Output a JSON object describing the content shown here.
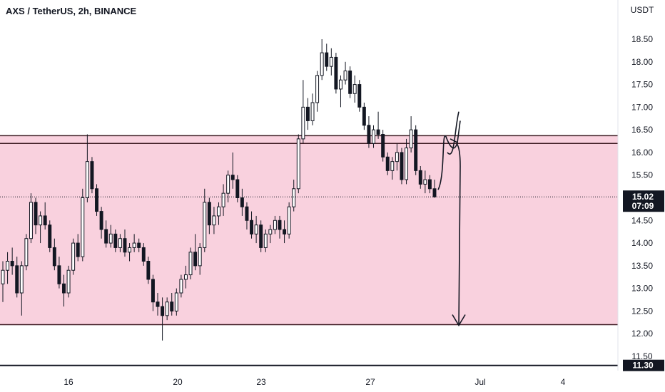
{
  "chart_data": {
    "type": "candlestick",
    "title": "AXS / TetherUS, 2h, BINANCE",
    "currency": "USDT",
    "y_ticks": [
      11.5,
      12.0,
      12.5,
      13.0,
      13.5,
      14.0,
      14.5,
      15.0,
      15.5,
      16.0,
      16.5,
      17.0,
      17.5,
      18.0,
      18.5
    ],
    "ylim": [
      11.2,
      18.9
    ],
    "x_ticks": [
      "16",
      "20",
      "23",
      "27",
      "Jul",
      "4"
    ],
    "last_price": "15.02",
    "countdown": "07:09",
    "low_marker": "11.30",
    "zone": {
      "top": 16.37,
      "bottom": 12.2,
      "color": "#f9d1de"
    },
    "resistance_lines": [
      16.37,
      16.2
    ],
    "support_line": 12.2,
    "bottom_line": 11.3,
    "colors": {
      "candle": "#131722",
      "zone_line": "#3d1a22",
      "annotation": "#131722",
      "price_tag": "#131722"
    },
    "candles": [
      {
        "o": 13.1,
        "h": 13.6,
        "l": 12.7,
        "c": 13.4
      },
      {
        "o": 13.4,
        "h": 13.8,
        "l": 13.1,
        "c": 13.6
      },
      {
        "o": 13.6,
        "h": 13.9,
        "l": 13.3,
        "c": 13.5
      },
      {
        "o": 13.5,
        "h": 13.7,
        "l": 12.8,
        "c": 12.9
      },
      {
        "o": 12.9,
        "h": 13.6,
        "l": 12.4,
        "c": 13.5
      },
      {
        "o": 13.5,
        "h": 14.2,
        "l": 13.4,
        "c": 14.1
      },
      {
        "o": 14.1,
        "h": 15.1,
        "l": 14.0,
        "c": 14.9
      },
      {
        "o": 14.9,
        "h": 15.0,
        "l": 14.2,
        "c": 14.4
      },
      {
        "o": 14.4,
        "h": 14.7,
        "l": 14.0,
        "c": 14.6
      },
      {
        "o": 14.6,
        "h": 14.9,
        "l": 14.3,
        "c": 14.4
      },
      {
        "o": 14.4,
        "h": 14.5,
        "l": 13.8,
        "c": 13.9
      },
      {
        "o": 13.9,
        "h": 14.1,
        "l": 13.4,
        "c": 13.5
      },
      {
        "o": 13.5,
        "h": 13.7,
        "l": 13.0,
        "c": 13.1
      },
      {
        "o": 13.1,
        "h": 13.3,
        "l": 12.6,
        "c": 12.9
      },
      {
        "o": 12.9,
        "h": 13.5,
        "l": 12.8,
        "c": 13.4
      },
      {
        "o": 13.4,
        "h": 14.1,
        "l": 13.3,
        "c": 14.0
      },
      {
        "o": 14.0,
        "h": 14.2,
        "l": 13.6,
        "c": 13.7
      },
      {
        "o": 13.7,
        "h": 15.2,
        "l": 13.6,
        "c": 15.0
      },
      {
        "o": 15.0,
        "h": 16.4,
        "l": 14.9,
        "c": 15.8
      },
      {
        "o": 15.8,
        "h": 15.9,
        "l": 15.1,
        "c": 15.2
      },
      {
        "o": 15.2,
        "h": 15.3,
        "l": 14.6,
        "c": 14.7
      },
      {
        "o": 14.7,
        "h": 14.8,
        "l": 14.1,
        "c": 14.3
      },
      {
        "o": 14.3,
        "h": 14.5,
        "l": 13.9,
        "c": 14.0
      },
      {
        "o": 14.0,
        "h": 14.4,
        "l": 13.9,
        "c": 14.2
      },
      {
        "o": 14.2,
        "h": 14.3,
        "l": 13.8,
        "c": 13.9
      },
      {
        "o": 13.9,
        "h": 14.2,
        "l": 13.8,
        "c": 14.1
      },
      {
        "o": 14.1,
        "h": 14.3,
        "l": 13.7,
        "c": 13.8
      },
      {
        "o": 13.8,
        "h": 14.0,
        "l": 13.6,
        "c": 13.9
      },
      {
        "o": 13.9,
        "h": 14.2,
        "l": 13.8,
        "c": 14.0
      },
      {
        "o": 14.0,
        "h": 14.1,
        "l": 13.8,
        "c": 13.9
      },
      {
        "o": 13.9,
        "h": 14.0,
        "l": 13.5,
        "c": 13.6
      },
      {
        "o": 13.6,
        "h": 13.7,
        "l": 13.1,
        "c": 13.2
      },
      {
        "o": 13.2,
        "h": 13.3,
        "l": 12.5,
        "c": 12.7
      },
      {
        "o": 12.7,
        "h": 12.9,
        "l": 12.4,
        "c": 12.6
      },
      {
        "o": 12.6,
        "h": 12.8,
        "l": 11.85,
        "c": 12.4
      },
      {
        "o": 12.4,
        "h": 12.8,
        "l": 12.3,
        "c": 12.7
      },
      {
        "o": 12.7,
        "h": 12.9,
        "l": 12.4,
        "c": 12.5
      },
      {
        "o": 12.5,
        "h": 13.0,
        "l": 12.4,
        "c": 12.9
      },
      {
        "o": 12.9,
        "h": 13.3,
        "l": 12.8,
        "c": 13.2
      },
      {
        "o": 13.2,
        "h": 13.5,
        "l": 13.0,
        "c": 13.3
      },
      {
        "o": 13.3,
        "h": 13.9,
        "l": 13.2,
        "c": 13.8
      },
      {
        "o": 13.8,
        "h": 14.2,
        "l": 13.4,
        "c": 13.5
      },
      {
        "o": 13.5,
        "h": 14.0,
        "l": 13.3,
        "c": 13.9
      },
      {
        "o": 13.9,
        "h": 15.2,
        "l": 13.8,
        "c": 14.9
      },
      {
        "o": 14.9,
        "h": 15.0,
        "l": 14.2,
        "c": 14.4
      },
      {
        "o": 14.4,
        "h": 14.8,
        "l": 14.2,
        "c": 14.6
      },
      {
        "o": 14.6,
        "h": 14.9,
        "l": 14.4,
        "c": 14.8
      },
      {
        "o": 14.8,
        "h": 15.3,
        "l": 14.6,
        "c": 15.1
      },
      {
        "o": 15.1,
        "h": 15.6,
        "l": 14.9,
        "c": 15.5
      },
      {
        "o": 15.5,
        "h": 16.0,
        "l": 15.2,
        "c": 15.4
      },
      {
        "o": 15.4,
        "h": 15.5,
        "l": 14.9,
        "c": 15.0
      },
      {
        "o": 15.0,
        "h": 15.2,
        "l": 14.6,
        "c": 14.8
      },
      {
        "o": 14.8,
        "h": 14.9,
        "l": 14.3,
        "c": 14.5
      },
      {
        "o": 14.5,
        "h": 14.7,
        "l": 14.1,
        "c": 14.2
      },
      {
        "o": 14.2,
        "h": 14.6,
        "l": 14.0,
        "c": 14.4
      },
      {
        "o": 14.4,
        "h": 14.5,
        "l": 13.8,
        "c": 13.9
      },
      {
        "o": 13.9,
        "h": 14.3,
        "l": 13.8,
        "c": 14.2
      },
      {
        "o": 14.2,
        "h": 14.4,
        "l": 14.0,
        "c": 14.3
      },
      {
        "o": 14.3,
        "h": 14.6,
        "l": 14.2,
        "c": 14.5
      },
      {
        "o": 14.5,
        "h": 14.6,
        "l": 14.1,
        "c": 14.3
      },
      {
        "o": 14.3,
        "h": 14.5,
        "l": 14.0,
        "c": 14.2
      },
      {
        "o": 14.2,
        "h": 14.9,
        "l": 14.1,
        "c": 14.8
      },
      {
        "o": 14.8,
        "h": 15.4,
        "l": 14.7,
        "c": 15.2
      },
      {
        "o": 15.2,
        "h": 16.4,
        "l": 15.1,
        "c": 16.3
      },
      {
        "o": 16.3,
        "h": 17.6,
        "l": 16.2,
        "c": 17.0
      },
      {
        "o": 17.0,
        "h": 17.2,
        "l": 16.5,
        "c": 16.7
      },
      {
        "o": 16.7,
        "h": 17.3,
        "l": 16.6,
        "c": 17.1
      },
      {
        "o": 17.1,
        "h": 17.8,
        "l": 16.9,
        "c": 17.7
      },
      {
        "o": 17.7,
        "h": 18.5,
        "l": 17.6,
        "c": 18.2
      },
      {
        "o": 18.2,
        "h": 18.4,
        "l": 17.8,
        "c": 17.9
      },
      {
        "o": 17.9,
        "h": 18.3,
        "l": 17.7,
        "c": 18.1
      },
      {
        "o": 18.1,
        "h": 18.2,
        "l": 17.3,
        "c": 17.4
      },
      {
        "o": 17.4,
        "h": 17.7,
        "l": 17.0,
        "c": 17.6
      },
      {
        "o": 17.6,
        "h": 18.0,
        "l": 17.5,
        "c": 17.8
      },
      {
        "o": 17.8,
        "h": 17.9,
        "l": 17.2,
        "c": 17.3
      },
      {
        "o": 17.3,
        "h": 17.7,
        "l": 17.1,
        "c": 17.5
      },
      {
        "o": 17.5,
        "h": 17.6,
        "l": 16.9,
        "c": 17.0
      },
      {
        "o": 17.0,
        "h": 17.1,
        "l": 16.5,
        "c": 16.6
      },
      {
        "o": 16.6,
        "h": 16.8,
        "l": 16.1,
        "c": 16.2
      },
      {
        "o": 16.2,
        "h": 16.6,
        "l": 16.1,
        "c": 16.5
      },
      {
        "o": 16.5,
        "h": 16.9,
        "l": 16.3,
        "c": 16.4
      },
      {
        "o": 16.4,
        "h": 16.5,
        "l": 15.8,
        "c": 15.9
      },
      {
        "o": 15.9,
        "h": 16.0,
        "l": 15.5,
        "c": 15.6
      },
      {
        "o": 15.6,
        "h": 15.9,
        "l": 15.4,
        "c": 15.8
      },
      {
        "o": 15.8,
        "h": 16.2,
        "l": 15.6,
        "c": 16.0
      },
      {
        "o": 16.0,
        "h": 16.1,
        "l": 15.3,
        "c": 15.4
      },
      {
        "o": 15.4,
        "h": 16.3,
        "l": 15.3,
        "c": 16.1
      },
      {
        "o": 16.1,
        "h": 16.8,
        "l": 16.0,
        "c": 16.5
      },
      {
        "o": 16.5,
        "h": 16.6,
        "l": 15.5,
        "c": 15.6
      },
      {
        "o": 15.6,
        "h": 15.7,
        "l": 15.2,
        "c": 15.3
      },
      {
        "o": 15.3,
        "h": 15.6,
        "l": 15.1,
        "c": 15.4
      },
      {
        "o": 15.4,
        "h": 15.5,
        "l": 15.1,
        "c": 15.2
      },
      {
        "o": 15.2,
        "h": 15.4,
        "l": 15.0,
        "c": 15.02
      }
    ]
  }
}
